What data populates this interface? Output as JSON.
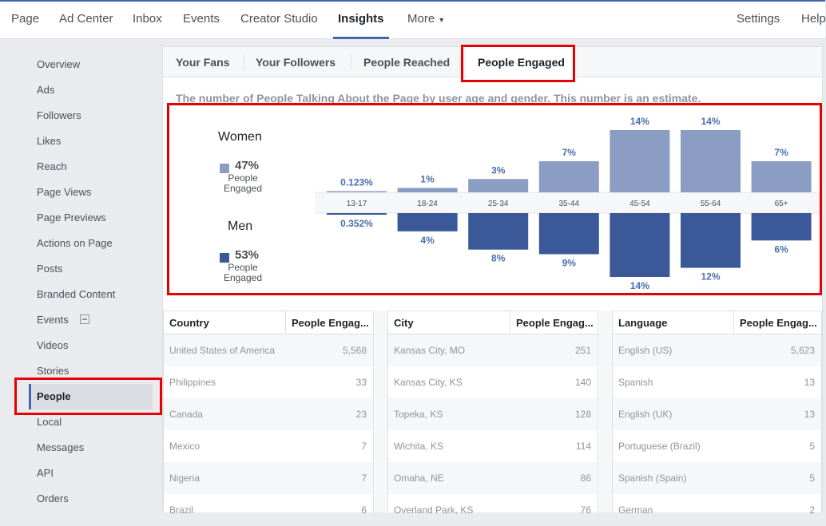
{
  "topnav": {
    "items": [
      "Page",
      "Ad Center",
      "Inbox",
      "Events",
      "Creator Studio",
      "Insights",
      "More"
    ],
    "settings": "Settings",
    "help": "Help"
  },
  "sidebar": {
    "items": [
      "Overview",
      "Ads",
      "Followers",
      "Likes",
      "Reach",
      "Page Views",
      "Page Previews",
      "Actions on Page",
      "Posts",
      "Branded Content",
      "Events",
      "Videos",
      "Stories",
      "People",
      "Local",
      "Messages",
      "API",
      "Orders"
    ],
    "active": "People"
  },
  "tabs": [
    "Your Fans",
    "Your Followers",
    "People Reached",
    "People Engaged"
  ],
  "active_tab": "People Engaged",
  "subtitle": "The number of People Talking About the Page by user age and gender. This number is an estimate.",
  "legend": {
    "women_label": "Women",
    "women_pct": "47%",
    "men_label": "Men",
    "men_pct": "53%",
    "sub_line1": "People",
    "sub_line2": "Engaged",
    "women_color": "#8b9dc3",
    "men_color": "#3b5998"
  },
  "chart_data": {
    "type": "bar",
    "categories": [
      "13-17",
      "18-24",
      "25-34",
      "35-44",
      "45-54",
      "55-64",
      "65+"
    ],
    "series": [
      {
        "name": "Women",
        "values": [
          0.123,
          1,
          3,
          7,
          14,
          14,
          7
        ],
        "labels": [
          "0.123%",
          "1%",
          "3%",
          "7%",
          "14%",
          "14%",
          "7%"
        ]
      },
      {
        "name": "Men",
        "values": [
          0.352,
          4,
          8,
          9,
          14,
          12,
          6
        ],
        "labels": [
          "0.352%",
          "4%",
          "8%",
          "9%",
          "14%",
          "12%",
          "6%"
        ]
      }
    ]
  },
  "tables": [
    {
      "headers": [
        "Country",
        "People Engag..."
      ],
      "rows": [
        [
          "United States of America",
          "5,568"
        ],
        [
          "Philippines",
          "33"
        ],
        [
          "Canada",
          "23"
        ],
        [
          "Mexico",
          "7"
        ],
        [
          "Nigeria",
          "7"
        ],
        [
          "Brazil",
          "6"
        ]
      ]
    },
    {
      "headers": [
        "City",
        "People Engag..."
      ],
      "rows": [
        [
          "Kansas City, MO",
          "251"
        ],
        [
          "Kansas City, KS",
          "140"
        ],
        [
          "Topeka, KS",
          "128"
        ],
        [
          "Wichita, KS",
          "114"
        ],
        [
          "Omaha, NE",
          "86"
        ],
        [
          "Overland Park, KS",
          "76"
        ]
      ]
    },
    {
      "headers": [
        "Language",
        "People Engag..."
      ],
      "rows": [
        [
          "English (US)",
          "5,623"
        ],
        [
          "Spanish",
          "13"
        ],
        [
          "English (UK)",
          "13"
        ],
        [
          "Portuguese (Brazil)",
          "5"
        ],
        [
          "Spanish (Spain)",
          "5"
        ],
        [
          "German",
          "2"
        ]
      ]
    }
  ]
}
